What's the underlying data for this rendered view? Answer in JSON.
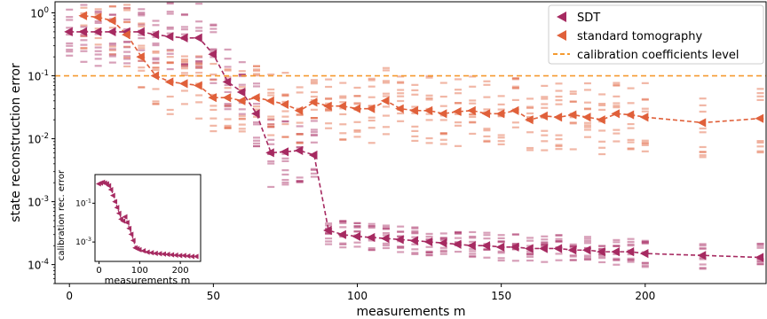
{
  "chart_data": [
    {
      "type": "scatter",
      "yscale": "log",
      "xlabel": "measurements m",
      "ylabel": "state reconstruction error",
      "xlim": [
        -5,
        242
      ],
      "ylim": [
        5e-05,
        1.5
      ],
      "xticks": [
        0,
        50,
        100,
        150,
        200
      ],
      "xtick_labels": [
        "0",
        "50",
        "100",
        "150",
        "200"
      ],
      "yticks": [
        1,
        0.1,
        0.01,
        0.001,
        0.0001
      ],
      "ytick_labels": [
        "10^0",
        "10^-1",
        "10^-2",
        "10^-3",
        "10^-4"
      ],
      "grid": false,
      "legend_position": "top-right",
      "legend": [
        {
          "label": "SDT",
          "color": "#a62a61",
          "marker": "left-triangle"
        },
        {
          "label": "standard tomography",
          "color": "#e0603a",
          "marker": "left-triangle"
        },
        {
          "label": "calibration coefficients level",
          "color": "#f59a30",
          "marker": "dashed-line"
        }
      ],
      "calibration_level": 0.1,
      "series": [
        {
          "name": "SDT",
          "color": "#a62a61",
          "x": [
            0,
            5,
            10,
            15,
            20,
            25,
            30,
            35,
            40,
            45,
            50,
            55,
            60,
            65,
            70,
            75,
            80,
            85,
            90,
            95,
            100,
            105,
            110,
            115,
            120,
            125,
            130,
            135,
            140,
            145,
            150,
            155,
            160,
            165,
            170,
            175,
            180,
            185,
            190,
            195,
            200,
            220,
            240
          ],
          "y": [
            0.5,
            0.5,
            0.5,
            0.5,
            0.5,
            0.5,
            0.45,
            0.42,
            0.4,
            0.4,
            0.22,
            0.08,
            0.055,
            0.025,
            0.006,
            0.0062,
            0.0065,
            0.0055,
            0.00035,
            0.0003,
            0.00028,
            0.00027,
            0.00026,
            0.00025,
            0.00024,
            0.00023,
            0.00022,
            0.00021,
            0.0002,
            0.0002,
            0.00019,
            0.00019,
            0.00018,
            0.00018,
            0.00018,
            0.00017,
            0.00017,
            0.00016,
            0.00016,
            0.00016,
            0.00015,
            0.00014,
            0.00013
          ]
        },
        {
          "name": "standard tomography",
          "color": "#e0603a",
          "x": [
            5,
            10,
            15,
            20,
            25,
            30,
            35,
            40,
            45,
            50,
            55,
            60,
            65,
            70,
            75,
            80,
            85,
            90,
            95,
            100,
            105,
            110,
            115,
            120,
            125,
            130,
            135,
            140,
            145,
            150,
            155,
            160,
            165,
            170,
            175,
            180,
            185,
            190,
            195,
            200,
            220,
            240
          ],
          "y": [
            0.9,
            0.85,
            0.75,
            0.45,
            0.2,
            0.1,
            0.08,
            0.075,
            0.07,
            0.045,
            0.045,
            0.04,
            0.045,
            0.04,
            0.035,
            0.028,
            0.038,
            0.033,
            0.033,
            0.03,
            0.03,
            0.04,
            0.03,
            0.028,
            0.028,
            0.025,
            0.027,
            0.028,
            0.025,
            0.025,
            0.028,
            0.02,
            0.023,
            0.022,
            0.024,
            0.022,
            0.02,
            0.025,
            0.024,
            0.022,
            0.018,
            0.021
          ]
        }
      ],
      "calibration_level_label": "calibration coefficients level"
    },
    {
      "type": "scatter",
      "yscale": "log",
      "xlabel": "measurements m",
      "ylabel": "calibration rec. error",
      "xlim": [
        -10,
        250
      ],
      "ylim": [
        0.0001,
        3
      ],
      "xticks": [
        0,
        100,
        200
      ],
      "xtick_labels": [
        "0",
        "100",
        "200"
      ],
      "yticks": [
        0.1,
        0.001
      ],
      "ytick_labels": [
        "10^-1",
        "10^-3"
      ],
      "series": [
        {
          "name": "SDT",
          "color": "#a62a61",
          "x": [
            0,
            5,
            10,
            15,
            20,
            25,
            30,
            35,
            40,
            45,
            50,
            55,
            60,
            65,
            70,
            75,
            80,
            85,
            90,
            95,
            100,
            110,
            120,
            130,
            140,
            150,
            160,
            170,
            180,
            190,
            200,
            210,
            220,
            230,
            240
          ],
          "y": [
            1,
            1.1,
            1.2,
            1.1,
            1.0,
            0.8,
            0.5,
            0.25,
            0.12,
            0.06,
            0.03,
            0.015,
            0.012,
            0.02,
            0.01,
            0.005,
            0.0025,
            0.0012,
            0.0005,
            0.00045,
            0.0004,
            0.00035,
            0.0003,
            0.00028,
            0.00026,
            0.00025,
            0.00024,
            0.00023,
            0.00022,
            0.00021,
            0.0002,
            0.0002,
            0.00019,
            0.00018,
            0.00018
          ]
        }
      ]
    }
  ]
}
